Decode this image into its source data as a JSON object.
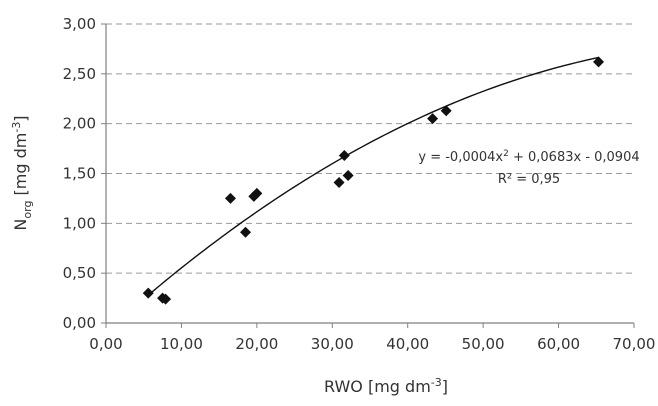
{
  "chart_data": {
    "type": "scatter",
    "xlabel": {
      "text": "RWO [mg dm",
      "sup": "-3",
      "close": "]"
    },
    "ylabel": {
      "main": "N",
      "sub": "org",
      "unit": " [mg dm",
      "sup": "-3",
      "close": "]"
    },
    "xlim": [
      0,
      70
    ],
    "ylim": [
      0,
      3
    ],
    "x_ticks": [
      "0,00",
      "10,00",
      "20,00",
      "30,00",
      "40,00",
      "50,00",
      "60,00",
      "70,00"
    ],
    "y_ticks": [
      "0,00",
      "0,50",
      "1,00",
      "1,50",
      "2,00",
      "2,50",
      "3,00"
    ],
    "grid": "horizontal-dashed",
    "legend": "none",
    "points": [
      {
        "x": 5.6,
        "y": 0.3
      },
      {
        "x": 7.5,
        "y": 0.25
      },
      {
        "x": 7.9,
        "y": 0.24
      },
      {
        "x": 16.5,
        "y": 1.25
      },
      {
        "x": 18.5,
        "y": 0.91
      },
      {
        "x": 19.6,
        "y": 1.27
      },
      {
        "x": 20.0,
        "y": 1.3
      },
      {
        "x": 30.9,
        "y": 1.41
      },
      {
        "x": 31.6,
        "y": 1.68
      },
      {
        "x": 32.1,
        "y": 1.48
      },
      {
        "x": 43.3,
        "y": 2.05
      },
      {
        "x": 45.1,
        "y": 2.13
      },
      {
        "x": 65.3,
        "y": 2.62
      }
    ],
    "trendline": {
      "type": "polynomial",
      "order": 2,
      "a": -0.0004,
      "b": 0.0683,
      "c": -0.0904,
      "x_range": [
        5.6,
        65.3
      ]
    },
    "annotations": {
      "equation": {
        "prefix": "y = -0,0004x",
        "sup": "2",
        "suffix": " + 0,0683x - 0,0904"
      },
      "r_squared": "R² = 0,95"
    },
    "colors": {
      "marker": "#111111",
      "trendline": "#111111",
      "grid": "#9a9a9a",
      "axis": "#7f7f7f",
      "text": "#333333"
    }
  }
}
